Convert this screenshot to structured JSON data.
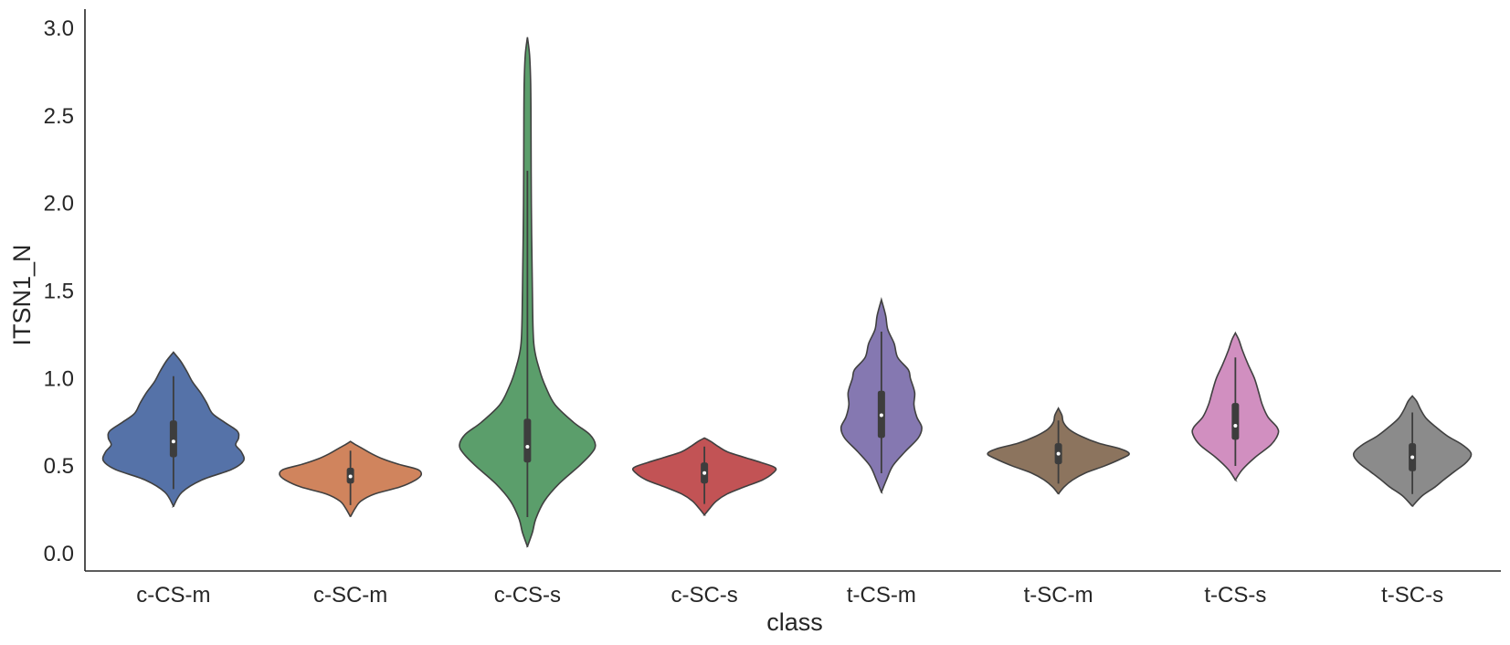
{
  "chart_data": {
    "type": "violin",
    "xlabel": "class",
    "ylabel": "ITSN1_N",
    "ylim": [
      -0.1,
      3.1
    ],
    "y_ticks": [
      "0.0",
      "0.5",
      "1.0",
      "1.5",
      "2.0",
      "2.5",
      "3.0"
    ],
    "grid": false,
    "categories": [
      "c-CS-m",
      "c-SC-m",
      "c-CS-s",
      "c-SC-s",
      "t-CS-m",
      "t-SC-m",
      "t-CS-s",
      "t-SC-s"
    ],
    "series": [
      {
        "category": "c-CS-m",
        "color": "#5572a8",
        "min": 0.27,
        "q1": 0.55,
        "median": 0.64,
        "q3": 0.76,
        "max": 1.15,
        "density": [
          [
            0.27,
            0.0
          ],
          [
            0.35,
            0.12
          ],
          [
            0.42,
            0.4
          ],
          [
            0.48,
            0.82
          ],
          [
            0.53,
            0.99
          ],
          [
            0.58,
            0.96
          ],
          [
            0.62,
            0.88
          ],
          [
            0.66,
            0.92
          ],
          [
            0.7,
            0.9
          ],
          [
            0.75,
            0.72
          ],
          [
            0.8,
            0.55
          ],
          [
            0.86,
            0.47
          ],
          [
            0.92,
            0.38
          ],
          [
            0.98,
            0.27
          ],
          [
            1.04,
            0.19
          ],
          [
            1.1,
            0.1
          ],
          [
            1.15,
            0.0
          ]
        ]
      },
      {
        "category": "c-SC-m",
        "color": "#d0845d",
        "min": 0.21,
        "q1": 0.4,
        "median": 0.44,
        "q3": 0.49,
        "max": 0.64,
        "density": [
          [
            0.21,
            0.0
          ],
          [
            0.26,
            0.07
          ],
          [
            0.3,
            0.15
          ],
          [
            0.34,
            0.34
          ],
          [
            0.38,
            0.7
          ],
          [
            0.42,
            0.92
          ],
          [
            0.45,
            1.0
          ],
          [
            0.48,
            0.95
          ],
          [
            0.51,
            0.68
          ],
          [
            0.54,
            0.46
          ],
          [
            0.57,
            0.3
          ],
          [
            0.6,
            0.17
          ],
          [
            0.62,
            0.08
          ],
          [
            0.64,
            0.0
          ]
        ]
      },
      {
        "category": "c-CS-s",
        "color": "#5b9e6b",
        "min": 0.04,
        "q1": 0.52,
        "median": 0.61,
        "q3": 0.77,
        "max": 2.95,
        "density": [
          [
            0.04,
            0.0
          ],
          [
            0.12,
            0.07
          ],
          [
            0.2,
            0.12
          ],
          [
            0.3,
            0.24
          ],
          [
            0.4,
            0.45
          ],
          [
            0.5,
            0.73
          ],
          [
            0.57,
            0.9
          ],
          [
            0.62,
            0.96
          ],
          [
            0.68,
            0.88
          ],
          [
            0.75,
            0.65
          ],
          [
            0.85,
            0.39
          ],
          [
            0.95,
            0.26
          ],
          [
            1.05,
            0.17
          ],
          [
            1.2,
            0.09
          ],
          [
            1.5,
            0.07
          ],
          [
            2.0,
            0.055
          ],
          [
            2.5,
            0.05
          ],
          [
            2.7,
            0.045
          ],
          [
            2.85,
            0.03
          ],
          [
            2.95,
            0.0
          ]
        ]
      },
      {
        "category": "c-SC-s",
        "color": "#c25355",
        "min": 0.22,
        "q1": 0.4,
        "median": 0.46,
        "q3": 0.52,
        "max": 0.66,
        "density": [
          [
            0.22,
            0.0
          ],
          [
            0.26,
            0.08
          ],
          [
            0.3,
            0.17
          ],
          [
            0.34,
            0.32
          ],
          [
            0.38,
            0.56
          ],
          [
            0.42,
            0.82
          ],
          [
            0.46,
            0.97
          ],
          [
            0.49,
            1.0
          ],
          [
            0.52,
            0.8
          ],
          [
            0.55,
            0.56
          ],
          [
            0.58,
            0.33
          ],
          [
            0.61,
            0.2
          ],
          [
            0.64,
            0.09
          ],
          [
            0.66,
            0.0
          ]
        ]
      },
      {
        "category": "t-CS-m",
        "color": "#8578b1",
        "min": 0.35,
        "q1": 0.66,
        "median": 0.79,
        "q3": 0.93,
        "max": 1.45,
        "density": [
          [
            0.35,
            0.0
          ],
          [
            0.42,
            0.07
          ],
          [
            0.5,
            0.16
          ],
          [
            0.58,
            0.33
          ],
          [
            0.66,
            0.52
          ],
          [
            0.72,
            0.57
          ],
          [
            0.78,
            0.5
          ],
          [
            0.85,
            0.46
          ],
          [
            0.92,
            0.47
          ],
          [
            1.0,
            0.41
          ],
          [
            1.05,
            0.38
          ],
          [
            1.12,
            0.23
          ],
          [
            1.2,
            0.18
          ],
          [
            1.28,
            0.09
          ],
          [
            1.36,
            0.06
          ],
          [
            1.45,
            0.0
          ]
        ]
      },
      {
        "category": "t-SC-m",
        "color": "#8c745e",
        "min": 0.34,
        "q1": 0.51,
        "median": 0.57,
        "q3": 0.63,
        "max": 0.83,
        "density": [
          [
            0.34,
            0.0
          ],
          [
            0.38,
            0.08
          ],
          [
            0.42,
            0.2
          ],
          [
            0.46,
            0.38
          ],
          [
            0.5,
            0.65
          ],
          [
            0.54,
            0.88
          ],
          [
            0.57,
            1.0
          ],
          [
            0.6,
            0.86
          ],
          [
            0.63,
            0.57
          ],
          [
            0.67,
            0.32
          ],
          [
            0.71,
            0.15
          ],
          [
            0.75,
            0.07
          ],
          [
            0.79,
            0.05
          ],
          [
            0.83,
            0.0
          ]
        ]
      },
      {
        "category": "t-CS-s",
        "color": "#d18fc0",
        "min": 0.42,
        "q1": 0.65,
        "median": 0.73,
        "q3": 0.86,
        "max": 1.26,
        "density": [
          [
            0.42,
            0.0
          ],
          [
            0.48,
            0.1
          ],
          [
            0.55,
            0.28
          ],
          [
            0.62,
            0.5
          ],
          [
            0.68,
            0.6
          ],
          [
            0.72,
            0.59
          ],
          [
            0.78,
            0.46
          ],
          [
            0.85,
            0.38
          ],
          [
            0.92,
            0.33
          ],
          [
            1.0,
            0.27
          ],
          [
            1.08,
            0.18
          ],
          [
            1.16,
            0.1
          ],
          [
            1.22,
            0.05
          ],
          [
            1.26,
            0.0
          ]
        ]
      },
      {
        "category": "t-SC-s",
        "color": "#8b8b8b",
        "min": 0.27,
        "q1": 0.47,
        "median": 0.55,
        "q3": 0.63,
        "max": 0.9,
        "density": [
          [
            0.27,
            0.0
          ],
          [
            0.33,
            0.14
          ],
          [
            0.38,
            0.32
          ],
          [
            0.42,
            0.44
          ],
          [
            0.47,
            0.6
          ],
          [
            0.52,
            0.76
          ],
          [
            0.57,
            0.83
          ],
          [
            0.62,
            0.71
          ],
          [
            0.67,
            0.5
          ],
          [
            0.72,
            0.34
          ],
          [
            0.77,
            0.2
          ],
          [
            0.82,
            0.12
          ],
          [
            0.87,
            0.06
          ],
          [
            0.9,
            0.0
          ]
        ]
      }
    ]
  }
}
